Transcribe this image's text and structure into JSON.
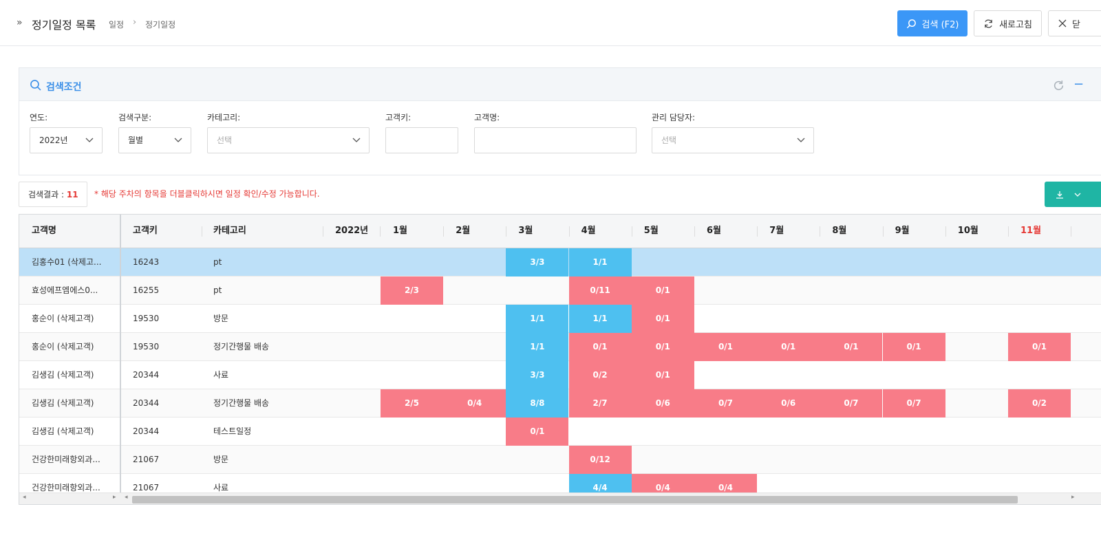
{
  "header": {
    "title": "정기일정 목록",
    "crumb1": "일정",
    "crumb2": "정기일정",
    "search_btn": "검색 (F2)",
    "refresh_btn": "새로고침",
    "close_btn": "닫"
  },
  "search": {
    "title": "검색조건",
    "year_label": "연도:",
    "year_value": "2022년",
    "type_label": "검색구분:",
    "type_value": "월별",
    "category_label": "카테고리:",
    "category_placeholder": "선택",
    "key_label": "고객키:",
    "name_label": "고객명:",
    "manager_label": "관리 담당자:",
    "manager_placeholder": "선택"
  },
  "result": {
    "label": "검색결과 :",
    "count": "11",
    "notice": "* 해당 주차의 항목을 더블클릭하시면 일정 확인/수정 가능합니다."
  },
  "colors": {
    "blue": "#4ec0f0",
    "red": "#f87c88",
    "selected": "#bde0f8",
    "accent": "#3b97f7",
    "red_text": "#e53935",
    "teal": "#1fb5a4"
  },
  "grid": {
    "headers": {
      "name": "고객명",
      "key": "고객키",
      "category": "카테고리",
      "year": "2022년",
      "months": [
        "1월",
        "2월",
        "3월",
        "4월",
        "5월",
        "6월",
        "7월",
        "8월",
        "9월",
        "10월",
        "11월"
      ]
    },
    "rows": [
      {
        "name": "김홍수01 (삭제고...",
        "key": "16243",
        "category": "pt",
        "cells": [
          "",
          "",
          "3/3",
          "1/1",
          "",
          "",
          "",
          "",
          "",
          "",
          ""
        ],
        "status": [
          "",
          "",
          "blue",
          "blue",
          "",
          "",
          "",
          "",
          "",
          "",
          ""
        ],
        "selected": true
      },
      {
        "name": "효성에프엠에스0...",
        "key": "16255",
        "category": "pt",
        "cells": [
          "2/3",
          "",
          "",
          "0/11",
          "0/1",
          "",
          "",
          "",
          "",
          "",
          ""
        ],
        "status": [
          "red",
          "",
          "",
          "red",
          "red",
          "",
          "",
          "",
          "",
          "",
          ""
        ]
      },
      {
        "name": "홍순이 (삭제고객)",
        "key": "19530",
        "category": "방문",
        "cells": [
          "",
          "",
          "1/1",
          "1/1",
          "0/1",
          "",
          "",
          "",
          "",
          "",
          ""
        ],
        "status": [
          "",
          "",
          "blue",
          "blue",
          "red",
          "",
          "",
          "",
          "",
          "",
          ""
        ]
      },
      {
        "name": "홍순이 (삭제고객)",
        "key": "19530",
        "category": "정기간행물 배송",
        "cells": [
          "",
          "",
          "1/1",
          "0/1",
          "0/1",
          "0/1",
          "0/1",
          "0/1",
          "0/1",
          "",
          "0/1"
        ],
        "status": [
          "",
          "",
          "blue",
          "red",
          "red",
          "red",
          "red",
          "red",
          "red",
          "",
          "red"
        ]
      },
      {
        "name": "김생김 (삭제고객)",
        "key": "20344",
        "category": "사료",
        "cells": [
          "",
          "",
          "3/3",
          "0/2",
          "0/1",
          "",
          "",
          "",
          "",
          "",
          ""
        ],
        "status": [
          "",
          "",
          "blue",
          "red",
          "red",
          "",
          "",
          "",
          "",
          "",
          ""
        ]
      },
      {
        "name": "김생김 (삭제고객)",
        "key": "20344",
        "category": "정기간행물 배송",
        "cells": [
          "2/5",
          "0/4",
          "8/8",
          "2/7",
          "0/6",
          "0/7",
          "0/6",
          "0/7",
          "0/7",
          "",
          "0/2"
        ],
        "status": [
          "red",
          "red",
          "blue",
          "red",
          "red",
          "red",
          "red",
          "red",
          "red",
          "",
          "red"
        ]
      },
      {
        "name": "김생김 (삭제고객)",
        "key": "20344",
        "category": "테스트일정",
        "cells": [
          "",
          "",
          "0/1",
          "",
          "",
          "",
          "",
          "",
          "",
          "",
          ""
        ],
        "status": [
          "",
          "",
          "red",
          "",
          "",
          "",
          "",
          "",
          "",
          "",
          ""
        ]
      },
      {
        "name": "건강한미래항외과...",
        "key": "21067",
        "category": "방문",
        "cells": [
          "",
          "",
          "",
          "0/12",
          "",
          "",
          "",
          "",
          "",
          "",
          ""
        ],
        "status": [
          "",
          "",
          "",
          "red",
          "",
          "",
          "",
          "",
          "",
          "",
          ""
        ]
      },
      {
        "name": "건강한미래항외과...",
        "key": "21067",
        "category": "사료",
        "cells": [
          "",
          "",
          "",
          "4/4",
          "0/4",
          "0/4",
          "",
          "",
          "",
          "",
          ""
        ],
        "status": [
          "",
          "",
          "",
          "blue",
          "red",
          "red",
          "",
          "",
          "",
          "",
          ""
        ]
      }
    ]
  }
}
